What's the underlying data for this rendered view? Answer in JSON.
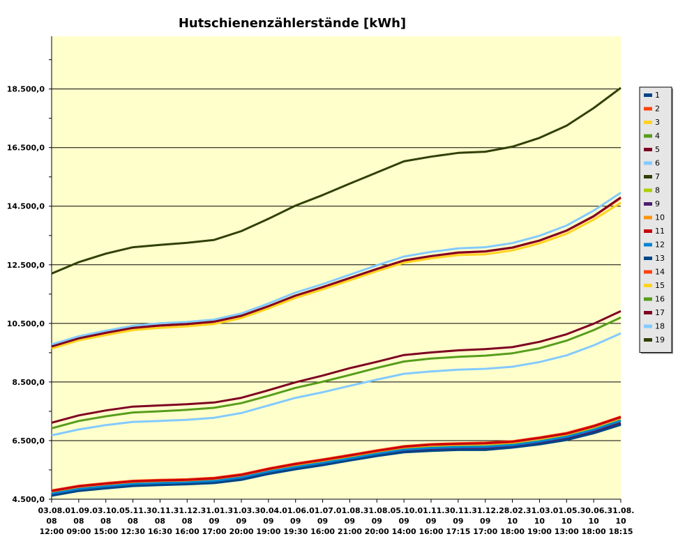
{
  "chart_data": {
    "type": "line",
    "title": "Hutschienenzählerstände [kWh]",
    "xlabel": "",
    "ylabel": "",
    "ylim": [
      4500,
      20300
    ],
    "yticks": [
      "4.500,0",
      "6.500,0",
      "8.500,0",
      "10.500,0",
      "12.500,0",
      "14.500,0",
      "16.500,0",
      "18.500,0"
    ],
    "grid": true,
    "legend_position": "right",
    "categories": [
      [
        "03.08.",
        "08",
        "12:00"
      ],
      [
        "01.09.",
        "08",
        "09:00"
      ],
      [
        "03.10.",
        "08",
        "15:00"
      ],
      [
        "05.11.",
        "08",
        "12:30"
      ],
      [
        "30.11.",
        "08",
        "16:30"
      ],
      [
        "31.12.",
        "08",
        "16:00"
      ],
      [
        "31.01.",
        "09",
        "17:00"
      ],
      [
        "31.03.",
        "09",
        "20:00"
      ],
      [
        "30.04.",
        "09",
        "19:00"
      ],
      [
        "01.06.",
        "09",
        "19:30"
      ],
      [
        "01.07.",
        "09",
        "16:00"
      ],
      [
        "01.08.",
        "09",
        "21:00"
      ],
      [
        "31.08.",
        "09",
        "20:00"
      ],
      [
        "05.10.",
        "09",
        "14:00"
      ],
      [
        "01.11.",
        "09",
        "16:00"
      ],
      [
        "30.11.",
        "09",
        "17:15"
      ],
      [
        "31.12.",
        "09",
        "17:00"
      ],
      [
        "28.02.",
        "10",
        "18:00"
      ],
      [
        "31.03.",
        "10",
        "19:00"
      ],
      [
        "01.05.",
        "10",
        "13:00"
      ],
      [
        "30.06.",
        "10",
        "18:00"
      ],
      [
        "31.08.",
        "10",
        "18:15"
      ]
    ],
    "series": [
      {
        "name": "1",
        "color": "#004586",
        "values": [
          4640,
          4800,
          4890,
          4970,
          5000,
          5030,
          5070,
          5180,
          5380,
          5540,
          5680,
          5840,
          5990,
          6120,
          6170,
          6200,
          6200,
          6280,
          6390,
          6540,
          6770,
          7060
        ]
      },
      {
        "name": "2",
        "color": "#ff420e",
        "values": [
          4800,
          4960,
          5050,
          5130,
          5160,
          5180,
          5230,
          5350,
          5550,
          5720,
          5860,
          6010,
          6170,
          6310,
          6380,
          6410,
          6430,
          6480,
          6610,
          6760,
          7010,
          7320
        ]
      },
      {
        "name": "3",
        "color": "#ffd320",
        "values": [
          4700,
          4860,
          4950,
          5030,
          5060,
          5080,
          5130,
          5250,
          5450,
          5610,
          5750,
          5900,
          6060,
          6200,
          6260,
          6290,
          6300,
          6360,
          6480,
          6640,
          6880,
          7190
        ]
      },
      {
        "name": "4",
        "color": "#579d1c",
        "values": [
          4720,
          4880,
          4970,
          5050,
          5080,
          5100,
          5150,
          5270,
          5470,
          5630,
          5770,
          5920,
          6080,
          6220,
          6280,
          6310,
          6320,
          6380,
          6500,
          6660,
          6900,
          7210
        ]
      },
      {
        "name": "5",
        "color": "#7e0021",
        "values": [
          4660,
          4820,
          4910,
          4990,
          5020,
          5050,
          5090,
          5200,
          5400,
          5560,
          5700,
          5860,
          6010,
          6140,
          6190,
          6220,
          6220,
          6300,
          6410,
          6560,
          6790,
          7080
        ]
      },
      {
        "name": "6",
        "color": "#83caff",
        "values": [
          4730,
          4890,
          4980,
          5060,
          5090,
          5110,
          5160,
          5280,
          5480,
          5640,
          5780,
          5930,
          6090,
          6230,
          6290,
          6320,
          6330,
          6390,
          6510,
          6670,
          6910,
          7220
        ]
      },
      {
        "name": "7",
        "color": "#314004",
        "values": [
          4680,
          4840,
          4930,
          5010,
          5040,
          5060,
          5110,
          5220,
          5420,
          5580,
          5720,
          5880,
          6030,
          6160,
          6210,
          6240,
          6240,
          6320,
          6430,
          6580,
          6810,
          7100
        ]
      },
      {
        "name": "8",
        "color": "#aecf00",
        "values": [
          4710,
          4870,
          4960,
          5040,
          5070,
          5090,
          5140,
          5260,
          5460,
          5620,
          5760,
          5910,
          6070,
          6210,
          6270,
          6300,
          6310,
          6370,
          6490,
          6650,
          6890,
          7200
        ]
      },
      {
        "name": "9",
        "color": "#4b1f6f",
        "values": [
          4670,
          4830,
          4920,
          5000,
          5030,
          5060,
          5100,
          5210,
          5410,
          5570,
          5710,
          5870,
          6020,
          6150,
          6200,
          6230,
          6230,
          6310,
          6420,
          6570,
          6800,
          7090
        ]
      },
      {
        "name": "10",
        "color": "#ff950e",
        "values": [
          4760,
          4920,
          5010,
          5090,
          5120,
          5140,
          5190,
          5310,
          5510,
          5680,
          5820,
          5970,
          6130,
          6270,
          6340,
          6370,
          6390,
          6440,
          6570,
          6720,
          6970,
          7280
        ]
      },
      {
        "name": "11",
        "color": "#c5000b",
        "values": [
          4780,
          4940,
          5030,
          5110,
          5140,
          5160,
          5210,
          5330,
          5530,
          5700,
          5840,
          5990,
          6150,
          6290,
          6360,
          6390,
          6410,
          6460,
          6590,
          6740,
          6990,
          7300
        ]
      },
      {
        "name": "12",
        "color": "#0084d1",
        "values": [
          4690,
          4850,
          4940,
          5020,
          5050,
          5070,
          5120,
          5240,
          5440,
          5600,
          5740,
          5890,
          6050,
          6190,
          6250,
          6280,
          6290,
          6350,
          6470,
          6630,
          6870,
          7180
        ]
      },
      {
        "name": "13",
        "color": "#004586",
        "values": [
          4620,
          4780,
          4870,
          4950,
          4980,
          5010,
          5050,
          5160,
          5360,
          5520,
          5660,
          5820,
          5970,
          6100,
          6150,
          6180,
          6180,
          6260,
          6370,
          6520,
          6750,
          7040
        ]
      },
      {
        "name": "14",
        "color": "#ff420e",
        "values": [
          9700,
          9980,
          10170,
          10340,
          10420,
          10470,
          10550,
          10750,
          11080,
          11440,
          11730,
          12040,
          12350,
          12640,
          12790,
          12910,
          12950,
          13080,
          13320,
          13660,
          14150,
          14780
        ]
      },
      {
        "name": "15",
        "color": "#ffd320",
        "values": [
          9640,
          9920,
          10100,
          10270,
          10350,
          10400,
          10480,
          10680,
          11010,
          11370,
          11660,
          11970,
          12280,
          12570,
          12720,
          12830,
          12860,
          12990,
          13230,
          13560,
          14040,
          14620
        ]
      },
      {
        "name": "16",
        "color": "#579d1c",
        "values": [
          6920,
          7170,
          7330,
          7460,
          7500,
          7550,
          7620,
          7780,
          8030,
          8300,
          8510,
          8740,
          8980,
          9200,
          9300,
          9360,
          9400,
          9480,
          9650,
          9910,
          10270,
          10700
        ]
      },
      {
        "name": "17",
        "color": "#7e0021",
        "values": [
          7110,
          7360,
          7530,
          7660,
          7700,
          7740,
          7800,
          7960,
          8220,
          8490,
          8720,
          8970,
          9190,
          9420,
          9510,
          9580,
          9620,
          9690,
          9870,
          10130,
          10490,
          10920
        ]
      },
      {
        "name": "18",
        "color": "#83caff",
        "values": [
          6680,
          6880,
          7030,
          7140,
          7170,
          7210,
          7280,
          7440,
          7700,
          7960,
          8150,
          8370,
          8580,
          8780,
          8860,
          8920,
          8950,
          9020,
          9180,
          9410,
          9750,
          10160
        ]
      },
      {
        "name": "19",
        "color": "#314004",
        "values": [
          12200,
          12590,
          12880,
          13100,
          13180,
          13250,
          13350,
          13650,
          14070,
          14520,
          14880,
          15270,
          15650,
          16030,
          16190,
          16320,
          16360,
          16530,
          16830,
          17250,
          17850,
          18540
        ]
      },
      {
        "name": "",
        "color": "#83caff",
        "values": [
          9780,
          10060,
          10250,
          10420,
          10500,
          10550,
          10630,
          10840,
          11180,
          11550,
          11840,
          12160,
          12480,
          12780,
          12940,
          13060,
          13100,
          13240,
          13490,
          13840,
          14350,
          14960
        ]
      },
      {
        "name": "",
        "color": "#7e0021",
        "values": [
          9710,
          9990,
          10180,
          10350,
          10430,
          10480,
          10560,
          10760,
          11090,
          11450,
          11740,
          12050,
          12360,
          12650,
          12800,
          12920,
          12960,
          13090,
          13330,
          13670,
          14160,
          14800
        ]
      }
    ]
  }
}
